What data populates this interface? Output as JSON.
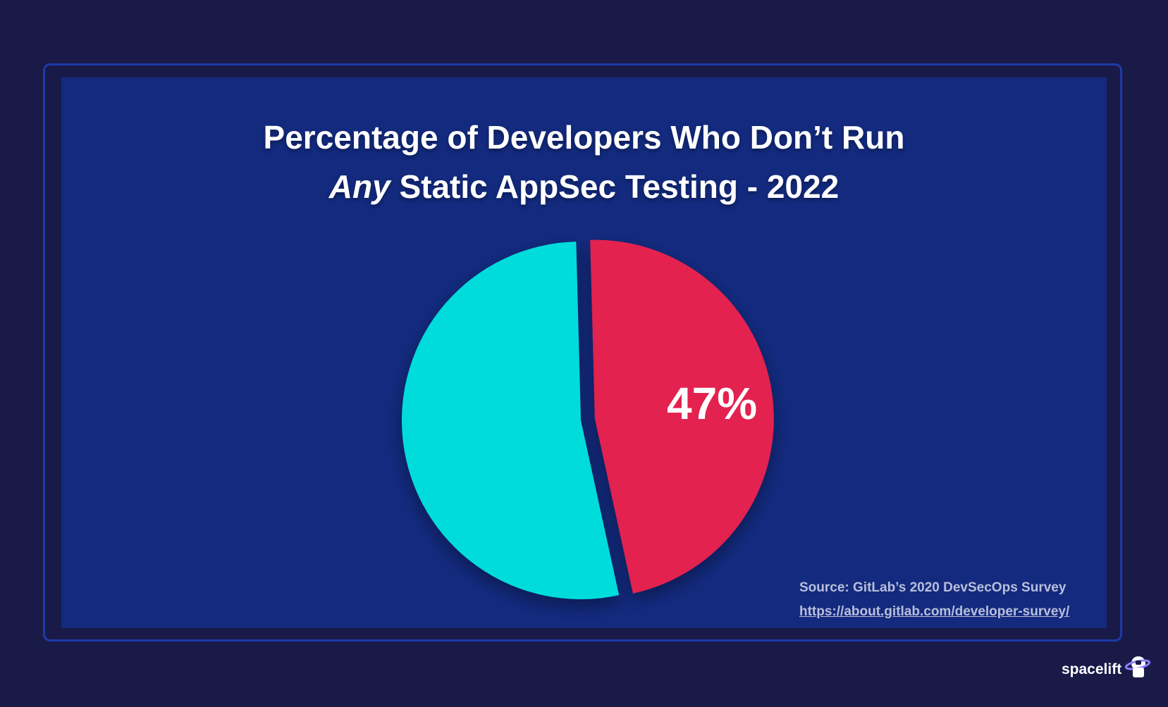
{
  "chart_data": {
    "type": "pie",
    "title_line1": "Percentage of Developers Who Don’t Run",
    "title_line2_italic": "Any",
    "title_line2_rest": " Static AppSec Testing - 2022",
    "slices": [
      {
        "name": "",
        "value": 47,
        "label": "47%",
        "color": "#e3204f",
        "exploded": true
      },
      {
        "name": "",
        "value": 53,
        "label": "",
        "color": "#04dcdc",
        "exploded": false
      }
    ]
  },
  "source": {
    "text": "Source:  GitLab’s 2020 DevSecOps Survey",
    "link": "https://about.gitlab.com/developer-survey/"
  },
  "brand": {
    "logo_text": "spacelift",
    "logo_icon": "astronaut-saturn-icon"
  }
}
